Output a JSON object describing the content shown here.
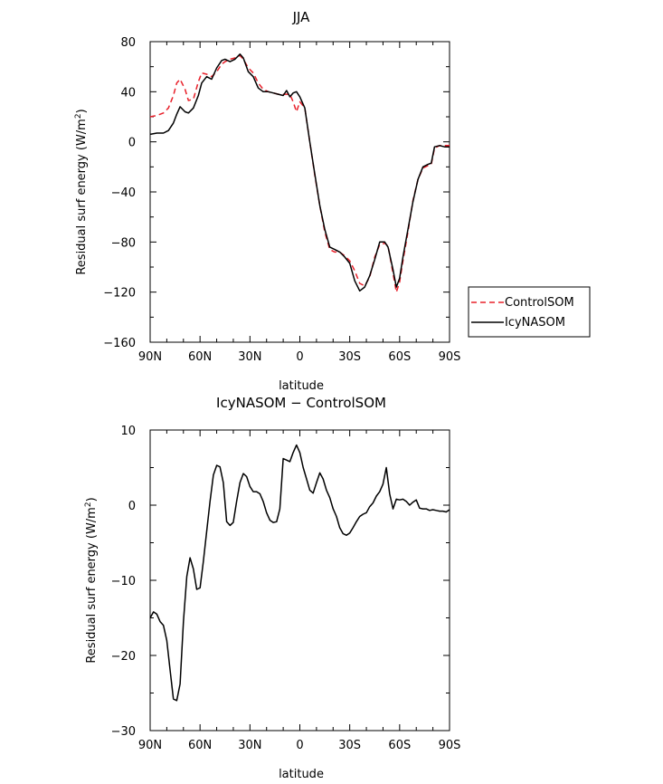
{
  "chart_data": [
    {
      "type": "line",
      "title": "JJA",
      "xlabel": "latitude",
      "ylabel": "Residual surf energy (W/m",
      "ylabel_sup": "2",
      "ylabel_close": ")",
      "xlim": [
        90,
        -90
      ],
      "ylim": [
        -160,
        80
      ],
      "xticks": [
        90,
        60,
        30,
        0,
        -30,
        -60,
        -90
      ],
      "xtick_labels": [
        "90N",
        "60N",
        "30N",
        "0",
        "30S",
        "60S",
        "90S"
      ],
      "yticks": [
        80,
        40,
        0,
        -40,
        -80,
        -120,
        -160
      ],
      "ytick_labels": [
        "80",
        "40",
        "0",
        "−40",
        "−80",
        "−120",
        "−160"
      ],
      "legend": {
        "placement": "right"
      },
      "series": [
        {
          "name": "ControlSOM",
          "color": "#e8202a",
          "dash": "dashed",
          "x": [
            90,
            86,
            82,
            79,
            76,
            74,
            72,
            69,
            67,
            64,
            61,
            59,
            56,
            53,
            50,
            47,
            45,
            42,
            39,
            36,
            34,
            31,
            28,
            25,
            22,
            19,
            16,
            13,
            10,
            8,
            6,
            4,
            2,
            0,
            -3,
            -6,
            -9,
            -12,
            -15,
            -18,
            -21,
            -24,
            -27,
            -30,
            -33,
            -36,
            -39,
            -42,
            -45,
            -48,
            -51,
            -53,
            -56,
            -58,
            -60,
            -62,
            -65,
            -68,
            -71,
            -74,
            -77,
            -79,
            -81,
            -84,
            -87,
            -90
          ],
          "y": [
            20,
            21,
            23,
            27,
            37,
            47,
            50,
            42,
            33,
            34,
            48,
            55,
            54,
            52,
            56,
            62,
            64,
            66,
            67,
            69,
            66,
            59,
            55,
            47,
            42,
            40,
            39,
            38,
            38,
            38,
            38,
            32,
            24,
            32,
            27,
            0,
            -27,
            -51,
            -72,
            -86,
            -88,
            -88,
            -91,
            -95,
            -103,
            -113,
            -115,
            -108,
            -92,
            -82,
            -81,
            -83,
            -105,
            -120,
            -112,
            -95,
            -72,
            -47,
            -30,
            -21,
            -19,
            -18,
            -5,
            -3,
            -3,
            -3
          ]
        },
        {
          "name": "IcyNASOM",
          "color": "#000000",
          "dash": "solid",
          "x": [
            90,
            86,
            82,
            79,
            76,
            74,
            72,
            69,
            67,
            64,
            61,
            59,
            56,
            53,
            50,
            47,
            45,
            42,
            39,
            36,
            34,
            31,
            28,
            25,
            22,
            19,
            16,
            13,
            10,
            8,
            6,
            4,
            2,
            0,
            -3,
            -6,
            -9,
            -12,
            -15,
            -18,
            -21,
            -24,
            -27,
            -30,
            -33,
            -36,
            -39,
            -42,
            -45,
            -48,
            -51,
            -53,
            -56,
            -58,
            -60,
            -62,
            -65,
            -68,
            -71,
            -74,
            -77,
            -79,
            -81,
            -84,
            -87,
            -90
          ],
          "y": [
            6,
            7,
            7,
            9,
            15,
            22,
            28,
            24,
            23,
            27,
            37,
            47,
            52,
            50,
            59,
            65,
            66,
            64,
            66,
            70,
            67,
            56,
            52,
            43,
            40,
            40,
            39,
            38,
            37,
            41,
            36,
            39,
            40,
            36,
            27,
            0,
            -26,
            -51,
            -70,
            -84,
            -86,
            -88,
            -92,
            -97,
            -111,
            -119,
            -116,
            -107,
            -94,
            -80,
            -80,
            -84,
            -102,
            -116,
            -109,
            -92,
            -70,
            -48,
            -30,
            -20,
            -18,
            -17,
            -4,
            -3,
            -4,
            -4
          ]
        }
      ]
    },
    {
      "type": "line",
      "title": "IcyNASOM − ControlSOM",
      "xlabel": "latitude",
      "ylabel": "Residual surf energy (W/m",
      "ylabel_sup": "2",
      "ylabel_close": ")",
      "xlim": [
        90,
        -90
      ],
      "ylim": [
        -30,
        10
      ],
      "xticks": [
        90,
        60,
        30,
        0,
        -30,
        -60,
        -90
      ],
      "xtick_labels": [
        "90N",
        "60N",
        "30N",
        "0",
        "30S",
        "60S",
        "90S"
      ],
      "yticks": [
        10,
        0,
        -10,
        -20,
        -30
      ],
      "ytick_labels": [
        "10",
        "0",
        "−10",
        "−20",
        "−30"
      ],
      "series": [
        {
          "color": "#000000",
          "x": [
            90,
            88,
            86,
            84,
            82,
            80,
            78,
            76,
            74,
            72,
            70,
            68,
            66,
            64,
            62,
            60,
            58,
            56,
            54,
            52,
            50,
            48,
            46,
            44,
            42,
            40,
            38,
            36,
            34,
            32,
            30,
            28,
            26,
            24,
            22,
            20,
            18,
            16,
            14,
            12,
            10,
            8,
            6,
            4,
            2,
            0,
            -2,
            -4,
            -6,
            -8,
            -10,
            -12,
            -14,
            -16,
            -18,
            -20,
            -22,
            -24,
            -26,
            -28,
            -30,
            -32,
            -34,
            -36,
            -38,
            -40,
            -42,
            -44,
            -46,
            -48,
            -50,
            -52,
            -54,
            -56,
            -58,
            -60,
            -62,
            -64,
            -66,
            -68,
            -70,
            -72,
            -74,
            -76,
            -78,
            -80,
            -82,
            -84,
            -86,
            -88,
            -90
          ],
          "y": [
            -15,
            -14.2,
            -14.5,
            -15.5,
            -16,
            -18,
            -22,
            -25.8,
            -26,
            -23.8,
            -15.5,
            -9.5,
            -7,
            -8.5,
            -11.2,
            -11,
            -7.5,
            -3.5,
            0.5,
            4,
            5.3,
            5.1,
            3,
            -2.2,
            -2.7,
            -2.3,
            0.5,
            3,
            4.2,
            3.8,
            2.5,
            1.8,
            1.8,
            1.5,
            0.5,
            -1,
            -2,
            -2.3,
            -2.2,
            -0.5,
            6.2,
            6,
            5.8,
            7,
            8,
            7,
            5,
            3.5,
            2,
            1.6,
            3,
            4.3,
            3.5,
            2,
            1,
            -0.5,
            -1.5,
            -3,
            -3.8,
            -4,
            -3.7,
            -3,
            -2.2,
            -1.5,
            -1.2,
            -1,
            -0.2,
            0.3,
            1.2,
            1.8,
            2.8,
            5,
            1.5,
            -0.5,
            0.8,
            0.7,
            0.8,
            0.5,
            0,
            0.4,
            0.7,
            -0.4,
            -0.5,
            -0.5,
            -0.7,
            -0.6,
            -0.7,
            -0.8,
            -0.8,
            -0.9,
            -0.6
          ]
        }
      ]
    }
  ]
}
